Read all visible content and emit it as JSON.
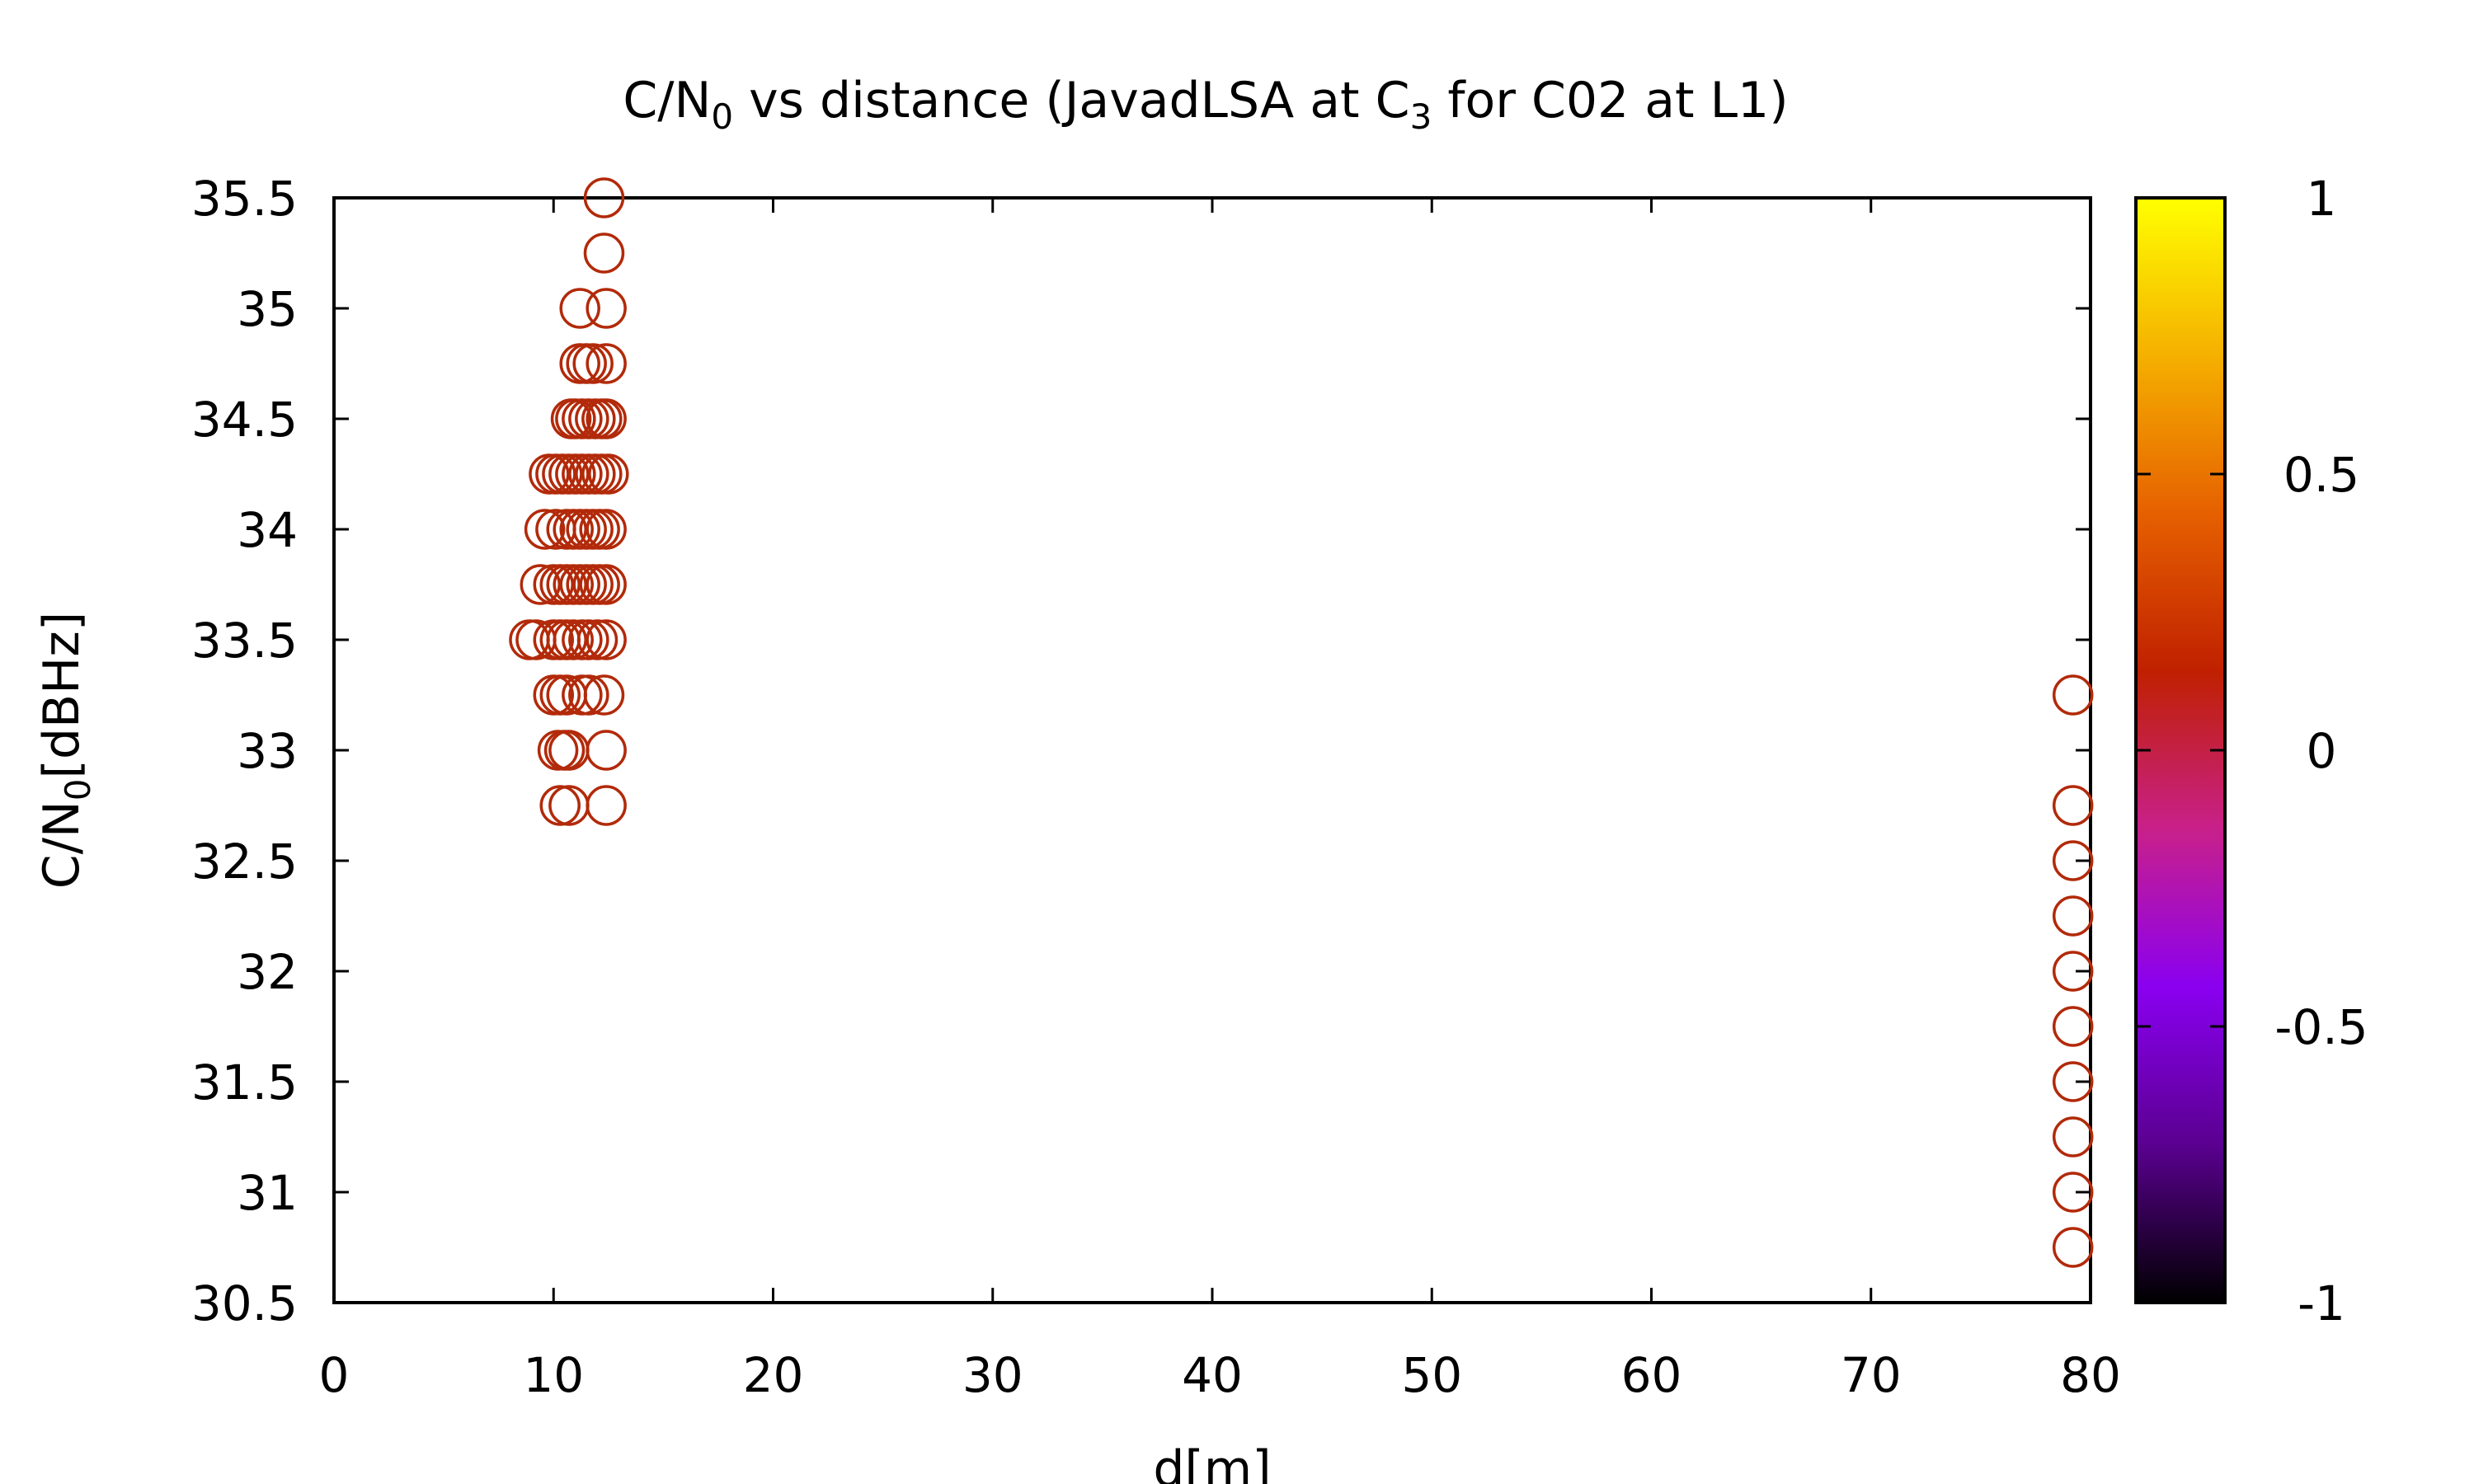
{
  "chart_data": {
    "type": "scatter",
    "title": {
      "main": "C/N",
      "sub1": "0",
      "mid": " vs distance (JavadLSA at C",
      "sub2": "3",
      "end": " for C02 at L1)"
    },
    "xlabel": "d[m]",
    "ylabel": {
      "main": "C/N",
      "sub": "0",
      "end": "[dBHz]"
    },
    "xlim": [
      0,
      80
    ],
    "ylim": [
      30.5,
      35.5
    ],
    "x_ticks": [
      "0",
      "10",
      "20",
      "30",
      "40",
      "50",
      "60",
      "70",
      "80"
    ],
    "y_ticks": [
      "30.5",
      "31",
      "31.5",
      "32",
      "32.5",
      "33",
      "33.5",
      "34",
      "34.5",
      "35",
      "35.5"
    ],
    "colorbar": {
      "range": [
        -1,
        1
      ],
      "ticks": [
        "-1",
        "-0.5",
        "0",
        "0.5",
        "1"
      ],
      "stops": [
        "#000000",
        "#5a0090",
        "#8a00f0",
        "#c8208a",
        "#c02000",
        "#e66000",
        "#f5b000",
        "#ffff00"
      ]
    },
    "marker_color": "#b22a0a",
    "points": [
      [
        12.3,
        35.5
      ],
      [
        12.3,
        35.25
      ],
      [
        11.2,
        35.0
      ],
      [
        12.4,
        35.0
      ],
      [
        11.2,
        34.75
      ],
      [
        11.5,
        34.75
      ],
      [
        11.8,
        34.75
      ],
      [
        12.4,
        34.75
      ],
      [
        10.8,
        34.5
      ],
      [
        11.0,
        34.5
      ],
      [
        11.3,
        34.5
      ],
      [
        11.6,
        34.5
      ],
      [
        11.9,
        34.5
      ],
      [
        12.2,
        34.5
      ],
      [
        12.4,
        34.5
      ],
      [
        9.8,
        34.25
      ],
      [
        10.1,
        34.25
      ],
      [
        10.4,
        34.25
      ],
      [
        10.7,
        34.25
      ],
      [
        11.0,
        34.25
      ],
      [
        11.3,
        34.25
      ],
      [
        11.6,
        34.25
      ],
      [
        11.9,
        34.25
      ],
      [
        12.2,
        34.25
      ],
      [
        12.5,
        34.25
      ],
      [
        9.6,
        34.0
      ],
      [
        10.1,
        34.0
      ],
      [
        10.6,
        34.0
      ],
      [
        10.9,
        34.0
      ],
      [
        11.2,
        34.0
      ],
      [
        11.5,
        34.0
      ],
      [
        11.8,
        34.0
      ],
      [
        12.1,
        34.0
      ],
      [
        12.4,
        34.0
      ],
      [
        9.4,
        33.75
      ],
      [
        10.0,
        33.75
      ],
      [
        10.3,
        33.75
      ],
      [
        10.6,
        33.75
      ],
      [
        10.9,
        33.75
      ],
      [
        11.2,
        33.75
      ],
      [
        11.5,
        33.75
      ],
      [
        11.8,
        33.75
      ],
      [
        12.1,
        33.75
      ],
      [
        12.4,
        33.75
      ],
      [
        8.9,
        33.5
      ],
      [
        9.2,
        33.5
      ],
      [
        10.0,
        33.5
      ],
      [
        10.3,
        33.5
      ],
      [
        10.6,
        33.5
      ],
      [
        10.9,
        33.5
      ],
      [
        11.3,
        33.5
      ],
      [
        11.6,
        33.5
      ],
      [
        12.0,
        33.5
      ],
      [
        12.4,
        33.5
      ],
      [
        10.0,
        33.25
      ],
      [
        10.3,
        33.25
      ],
      [
        10.6,
        33.25
      ],
      [
        11.3,
        33.25
      ],
      [
        11.6,
        33.25
      ],
      [
        12.3,
        33.25
      ],
      [
        10.2,
        33.0
      ],
      [
        10.5,
        33.0
      ],
      [
        10.7,
        33.0
      ],
      [
        12.4,
        33.0
      ],
      [
        10.3,
        32.75
      ],
      [
        10.7,
        32.75
      ],
      [
        12.4,
        32.75
      ],
      [
        79.2,
        33.25
      ],
      [
        79.2,
        32.75
      ],
      [
        79.2,
        32.5
      ],
      [
        79.2,
        32.25
      ],
      [
        79.2,
        32.0
      ],
      [
        79.2,
        31.75
      ],
      [
        79.2,
        31.5
      ],
      [
        79.2,
        31.25
      ],
      [
        79.2,
        31.0
      ],
      [
        79.2,
        30.75
      ]
    ]
  }
}
